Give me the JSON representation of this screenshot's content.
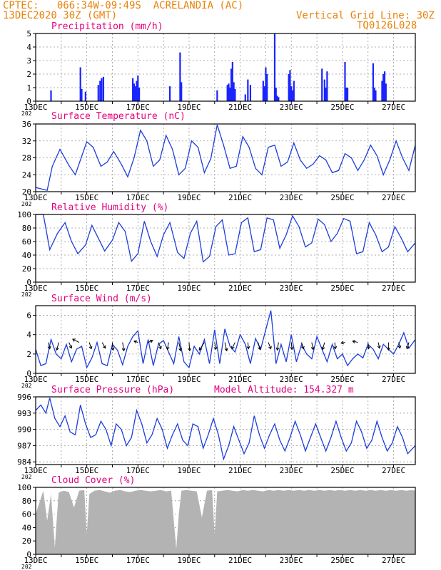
{
  "header": {
    "line1_left": "CPTEC:   066:34W-09:49S  ACRELANDIA (AC)",
    "line2_left": "13DEC2020 30Z (GMT)",
    "line1_right": "Vertical Grid Line: 30Z",
    "line2_right": "TQ0126L028"
  },
  "x_axis": {
    "labels": [
      "13DEC",
      "15DEC",
      "17DEC",
      "19DEC",
      "21DEC",
      "23DEC",
      "25DEC",
      "27DEC"
    ],
    "label_days": [
      0,
      2,
      4,
      6,
      8,
      10,
      12,
      14
    ],
    "year_stub": "202",
    "domain_days": [
      0,
      14.85
    ]
  },
  "colors": {
    "line": "#1c3ddb",
    "bars": "#1a24ff",
    "cloud": "#b3b3b3",
    "header": "#e8820c",
    "title": "#e4007c",
    "grid": "#999999"
  },
  "chart_data": [
    {
      "type": "bar",
      "title": "Precipitation (mm/h)",
      "ylim": [
        0,
        5
      ],
      "yticks": [
        0,
        1,
        2,
        3,
        4,
        5
      ],
      "x_days": [
        0.6,
        1.75,
        1.8,
        1.95,
        2.45,
        2.52,
        2.58,
        2.65,
        3.8,
        3.85,
        3.9,
        3.95,
        4.0,
        4.05,
        5.25,
        5.65,
        5.7,
        7.1,
        7.5,
        7.55,
        7.6,
        7.65,
        7.7,
        7.75,
        7.8,
        8.2,
        8.3,
        8.4,
        8.9,
        8.95,
        9.0,
        9.05,
        9.35,
        9.4,
        9.45,
        9.5,
        9.9,
        9.95,
        10.0,
        10.05,
        10.1,
        11.2,
        11.3,
        11.35,
        11.4,
        12.1,
        12.15,
        12.2,
        13.2,
        13.25,
        13.3,
        13.55,
        13.6,
        13.65,
        13.7
      ],
      "values": [
        0.8,
        2.5,
        0.9,
        0.7,
        1.2,
        1.5,
        1.7,
        1.8,
        1.7,
        1.3,
        1.1,
        1.5,
        1.9,
        1.0,
        1.1,
        3.6,
        1.4,
        0.8,
        1.2,
        1.3,
        1.0,
        2.4,
        2.9,
        1.4,
        0.9,
        0.5,
        1.6,
        1.2,
        1.5,
        1.1,
        2.5,
        2.0,
        5.0,
        1.0,
        0.4,
        0.3,
        2.0,
        2.3,
        1.1,
        0.8,
        1.5,
        2.4,
        1.6,
        1.0,
        2.2,
        2.9,
        1.0,
        1.0,
        2.8,
        1.0,
        0.8,
        1.5,
        2.0,
        2.2,
        1.3
      ]
    },
    {
      "type": "line",
      "title": "Surface Temperature (nC)",
      "ylim": [
        20,
        36
      ],
      "yticks": [
        20,
        24,
        28,
        32,
        36
      ],
      "x_days": [
        0.0,
        0.25,
        0.45,
        0.65,
        0.95,
        1.3,
        1.55,
        1.75,
        2.0,
        2.25,
        2.55,
        2.8,
        3.05,
        3.35,
        3.6,
        3.85,
        4.1,
        4.35,
        4.6,
        4.85,
        5.1,
        5.35,
        5.6,
        5.85,
        6.1,
        6.35,
        6.6,
        6.85,
        7.1,
        7.35,
        7.6,
        7.85,
        8.1,
        8.35,
        8.6,
        8.85,
        9.1,
        9.35,
        9.6,
        9.85,
        10.1,
        10.35,
        10.6,
        10.85,
        11.1,
        11.35,
        11.6,
        11.85,
        12.1,
        12.35,
        12.6,
        12.85,
        13.1,
        13.35,
        13.6,
        13.85,
        14.1,
        14.35,
        14.6,
        14.85
      ],
      "values": [
        21.0,
        20.6,
        20.3,
        26.0,
        30.0,
        26.2,
        24.0,
        27.5,
        31.8,
        30.5,
        26.0,
        27.0,
        29.5,
        26.5,
        23.5,
        28.0,
        34.5,
        32.0,
        26.0,
        27.5,
        33.3,
        30.0,
        24.0,
        25.5,
        32.0,
        30.5,
        24.5,
        27.8,
        35.8,
        31.0,
        25.5,
        26.0,
        33.0,
        30.5,
        25.5,
        24.0,
        30.5,
        31.0,
        26.0,
        27.0,
        31.5,
        27.5,
        25.5,
        26.5,
        28.5,
        27.5,
        24.5,
        25.0,
        29.0,
        28.0,
        25.0,
        27.5,
        31.0,
        28.5,
        24.0,
        27.5,
        32.0,
        28.0,
        25.0,
        31.0
      ]
    },
    {
      "type": "line",
      "title": "Relative Humidity (%)",
      "ylim": [
        0,
        100
      ],
      "yticks": [
        0,
        20,
        40,
        60,
        80,
        100
      ],
      "x_days": [
        0.0,
        0.3,
        0.55,
        0.85,
        1.15,
        1.4,
        1.65,
        1.95,
        2.2,
        2.45,
        2.7,
        3.0,
        3.25,
        3.5,
        3.75,
        4.0,
        4.25,
        4.5,
        4.75,
        5.0,
        5.25,
        5.55,
        5.8,
        6.05,
        6.3,
        6.55,
        6.8,
        7.05,
        7.3,
        7.55,
        7.8,
        8.05,
        8.3,
        8.55,
        8.8,
        9.05,
        9.3,
        9.55,
        9.8,
        10.05,
        10.3,
        10.55,
        10.8,
        11.05,
        11.3,
        11.55,
        11.8,
        12.05,
        12.3,
        12.55,
        12.8,
        13.05,
        13.3,
        13.55,
        13.8,
        14.05,
        14.3,
        14.55,
        14.85
      ],
      "values": [
        100.0,
        100.0,
        48.0,
        72.0,
        88.0,
        60.0,
        42.0,
        55.0,
        84.0,
        65.0,
        46.0,
        62.0,
        88.0,
        75.0,
        31.0,
        42.0,
        90.0,
        60.0,
        38.0,
        70.0,
        88.0,
        44.0,
        35.0,
        72.0,
        90.0,
        30.0,
        38.0,
        82.0,
        92.0,
        40.0,
        42.0,
        88.0,
        95.0,
        45.0,
        48.0,
        95.0,
        92.0,
        50.0,
        70.0,
        98.0,
        82.0,
        52.0,
        58.0,
        93.0,
        85.0,
        60.0,
        72.0,
        94.0,
        90.0,
        42.0,
        45.0,
        88.0,
        70.0,
        45.0,
        52.0,
        82.0,
        65.0,
        45.0,
        58.0
      ]
    },
    {
      "type": "line",
      "title": "Surface Wind (m/s)",
      "ylim": [
        0,
        7
      ],
      "yticks": [
        0,
        2,
        4,
        6
      ],
      "x_days": [
        0.0,
        0.2,
        0.4,
        0.6,
        0.8,
        1.0,
        1.2,
        1.4,
        1.6,
        1.8,
        2.0,
        2.2,
        2.4,
        2.6,
        2.8,
        3.0,
        3.2,
        3.4,
        3.6,
        3.8,
        4.0,
        4.2,
        4.4,
        4.6,
        4.8,
        5.0,
        5.2,
        5.4,
        5.6,
        5.8,
        6.0,
        6.2,
        6.4,
        6.6,
        6.8,
        7.0,
        7.2,
        7.4,
        7.6,
        7.8,
        8.0,
        8.2,
        8.4,
        8.6,
        8.8,
        9.0,
        9.2,
        9.4,
        9.6,
        9.8,
        10.0,
        10.2,
        10.4,
        10.6,
        10.8,
        11.0,
        11.2,
        11.4,
        11.6,
        11.8,
        12.0,
        12.2,
        12.4,
        12.6,
        12.8,
        13.0,
        13.2,
        13.4,
        13.6,
        13.8,
        14.0,
        14.2,
        14.4,
        14.6,
        14.85
      ],
      "values": [
        2.5,
        0.8,
        1.0,
        3.5,
        2.0,
        1.5,
        3.0,
        1.2,
        2.5,
        2.8,
        0.6,
        1.6,
        3.2,
        1.0,
        0.8,
        3.0,
        2.4,
        0.9,
        2.8,
        3.8,
        4.4,
        1.0,
        3.5,
        0.8,
        3.0,
        3.4,
        2.2,
        1.0,
        3.8,
        1.2,
        0.6,
        2.8,
        2.0,
        3.5,
        1.0,
        4.5,
        1.0,
        4.6,
        2.8,
        2.2,
        4.0,
        3.0,
        1.0,
        3.6,
        2.5,
        4.5,
        6.5,
        1.0,
        3.0,
        1.2,
        4.0,
        1.2,
        3.0,
        2.0,
        1.5,
        3.8,
        2.5,
        1.2,
        3.0,
        1.5,
        2.0,
        0.8,
        1.5,
        2.0,
        1.6,
        3.0,
        2.5,
        1.5,
        3.0,
        2.5,
        2.0,
        3.0,
        4.2,
        2.6,
        3.5
      ],
      "arrows_x_days": [
        0.5,
        0.9,
        1.3,
        1.7,
        2.1,
        2.6,
        3.0,
        3.4,
        4.0,
        4.4,
        4.8,
        5.2,
        5.6,
        6.0,
        6.6,
        7.0,
        7.4,
        7.8,
        8.3,
        8.7,
        9.1,
        9.5,
        10.0,
        10.4,
        10.8,
        11.3,
        11.7,
        12.1,
        12.6,
        13.0,
        13.4,
        13.8,
        14.2,
        14.6
      ],
      "arrows_u": [
        0.2,
        -0.3,
        0.4,
        -1.0,
        0.3,
        0.5,
        0.1,
        0.2,
        -0.6,
        0.7,
        0.4,
        -0.2,
        0.3,
        0.1,
        -0.8,
        0.2,
        0.3,
        -0.5,
        0.1,
        0.3,
        0.4,
        -0.2,
        0.1,
        0.3,
        0.2,
        -0.3,
        0.1,
        -0.6,
        -0.8,
        0.1,
        0.2,
        0.0,
        0.2,
        -0.3
      ],
      "arrows_v": [
        -1.0,
        -1.2,
        -0.9,
        0.5,
        -1.0,
        -0.9,
        -1.2,
        -1.3,
        0.2,
        0.3,
        -1.0,
        -1.1,
        -1.3,
        -1.3,
        -1.2,
        -1.1,
        -1.3,
        -1.0,
        -1.0,
        -1.1,
        -1.0,
        -1.2,
        -1.1,
        -1.0,
        -1.1,
        -1.1,
        -1.0,
        -0.1,
        0.2,
        -1.0,
        -0.9,
        -1.2,
        -0.9,
        -1.0
      ]
    },
    {
      "type": "line",
      "title": "Surface Pressure (hPa)",
      "subtitle": "Model Altitude: 154.327 m",
      "ylim": [
        983.5,
        996
      ],
      "yticks": [
        984,
        987,
        990,
        993,
        996
      ],
      "x_days": [
        0.0,
        0.2,
        0.4,
        0.55,
        0.75,
        0.95,
        1.15,
        1.35,
        1.55,
        1.75,
        1.95,
        2.15,
        2.35,
        2.55,
        2.75,
        2.95,
        3.15,
        3.35,
        3.55,
        3.75,
        3.95,
        4.15,
        4.35,
        4.55,
        4.75,
        4.95,
        5.15,
        5.35,
        5.55,
        5.75,
        5.95,
        6.15,
        6.35,
        6.55,
        6.75,
        6.95,
        7.15,
        7.35,
        7.55,
        7.75,
        7.95,
        8.15,
        8.35,
        8.55,
        8.75,
        8.95,
        9.15,
        9.35,
        9.55,
        9.75,
        9.95,
        10.15,
        10.35,
        10.55,
        10.75,
        10.95,
        11.15,
        11.35,
        11.55,
        11.75,
        11.95,
        12.15,
        12.35,
        12.55,
        12.75,
        12.95,
        13.15,
        13.35,
        13.55,
        13.75,
        13.95,
        14.15,
        14.35,
        14.55,
        14.85
      ],
      "values": [
        993.5,
        994.5,
        993.0,
        995.8,
        992.0,
        990.5,
        992.5,
        989.5,
        989.0,
        994.5,
        991.0,
        988.5,
        989.0,
        991.5,
        990.0,
        987.0,
        991.0,
        990.0,
        987.0,
        988.5,
        993.5,
        991.0,
        987.5,
        989.0,
        992.0,
        990.0,
        986.5,
        989.0,
        991.0,
        988.0,
        987.0,
        991.0,
        990.5,
        986.5,
        989.0,
        992.0,
        989.0,
        984.5,
        987.0,
        990.5,
        988.0,
        985.5,
        987.5,
        992.5,
        989.0,
        986.5,
        989.0,
        991.0,
        988.0,
        986.0,
        988.5,
        991.5,
        989.0,
        986.0,
        988.5,
        991.0,
        988.5,
        986.0,
        988.5,
        991.5,
        988.5,
        986.0,
        987.5,
        991.5,
        989.5,
        986.5,
        988.0,
        991.5,
        988.5,
        986.0,
        987.5,
        990.5,
        988.5,
        985.5,
        987.0
      ]
    },
    {
      "type": "area",
      "title": "Cloud Cover (%)",
      "ylim": [
        0,
        100
      ],
      "yticks": [
        0,
        20,
        40,
        60,
        80,
        100
      ],
      "x_days": [
        0.0,
        0.3,
        0.45,
        0.6,
        0.75,
        0.8,
        0.9,
        1.1,
        1.3,
        1.5,
        1.7,
        1.9,
        2.0,
        2.1,
        2.3,
        2.5,
        2.7,
        2.9,
        3.1,
        3.3,
        3.5,
        3.7,
        3.9,
        4.1,
        4.3,
        4.5,
        4.7,
        4.9,
        5.1,
        5.3,
        5.5,
        5.6,
        5.7,
        5.9,
        6.1,
        6.3,
        6.5,
        6.7,
        6.9,
        7.0,
        7.1,
        7.3,
        7.5,
        7.7,
        7.9,
        8.1,
        8.3,
        8.5,
        8.7,
        8.9,
        9.1,
        9.3,
        9.5,
        9.7,
        9.9,
        10.1,
        10.3,
        10.5,
        10.7,
        10.9,
        11.1,
        11.3,
        11.5,
        11.7,
        11.9,
        12.1,
        12.3,
        12.5,
        12.7,
        12.9,
        13.1,
        13.3,
        13.5,
        13.7,
        13.9,
        14.1,
        14.3,
        14.5,
        14.7,
        14.85
      ],
      "values": [
        60,
        95,
        50,
        90,
        10,
        40,
        92,
        95,
        93,
        70,
        95,
        96,
        30,
        90,
        95,
        96,
        94,
        92,
        95,
        96,
        94,
        93,
        95,
        96,
        95,
        94,
        95,
        96,
        94,
        95,
        8,
        60,
        95,
        96,
        95,
        94,
        55,
        95,
        96,
        30,
        94,
        95,
        96,
        95,
        94,
        96,
        95,
        96,
        95,
        94,
        96,
        95,
        96,
        95,
        96,
        95,
        96,
        95,
        96,
        95,
        96,
        95,
        96,
        95,
        96,
        95,
        96,
        95,
        96,
        95,
        96,
        95,
        96,
        95,
        96,
        95,
        96,
        95,
        96,
        95
      ]
    }
  ]
}
